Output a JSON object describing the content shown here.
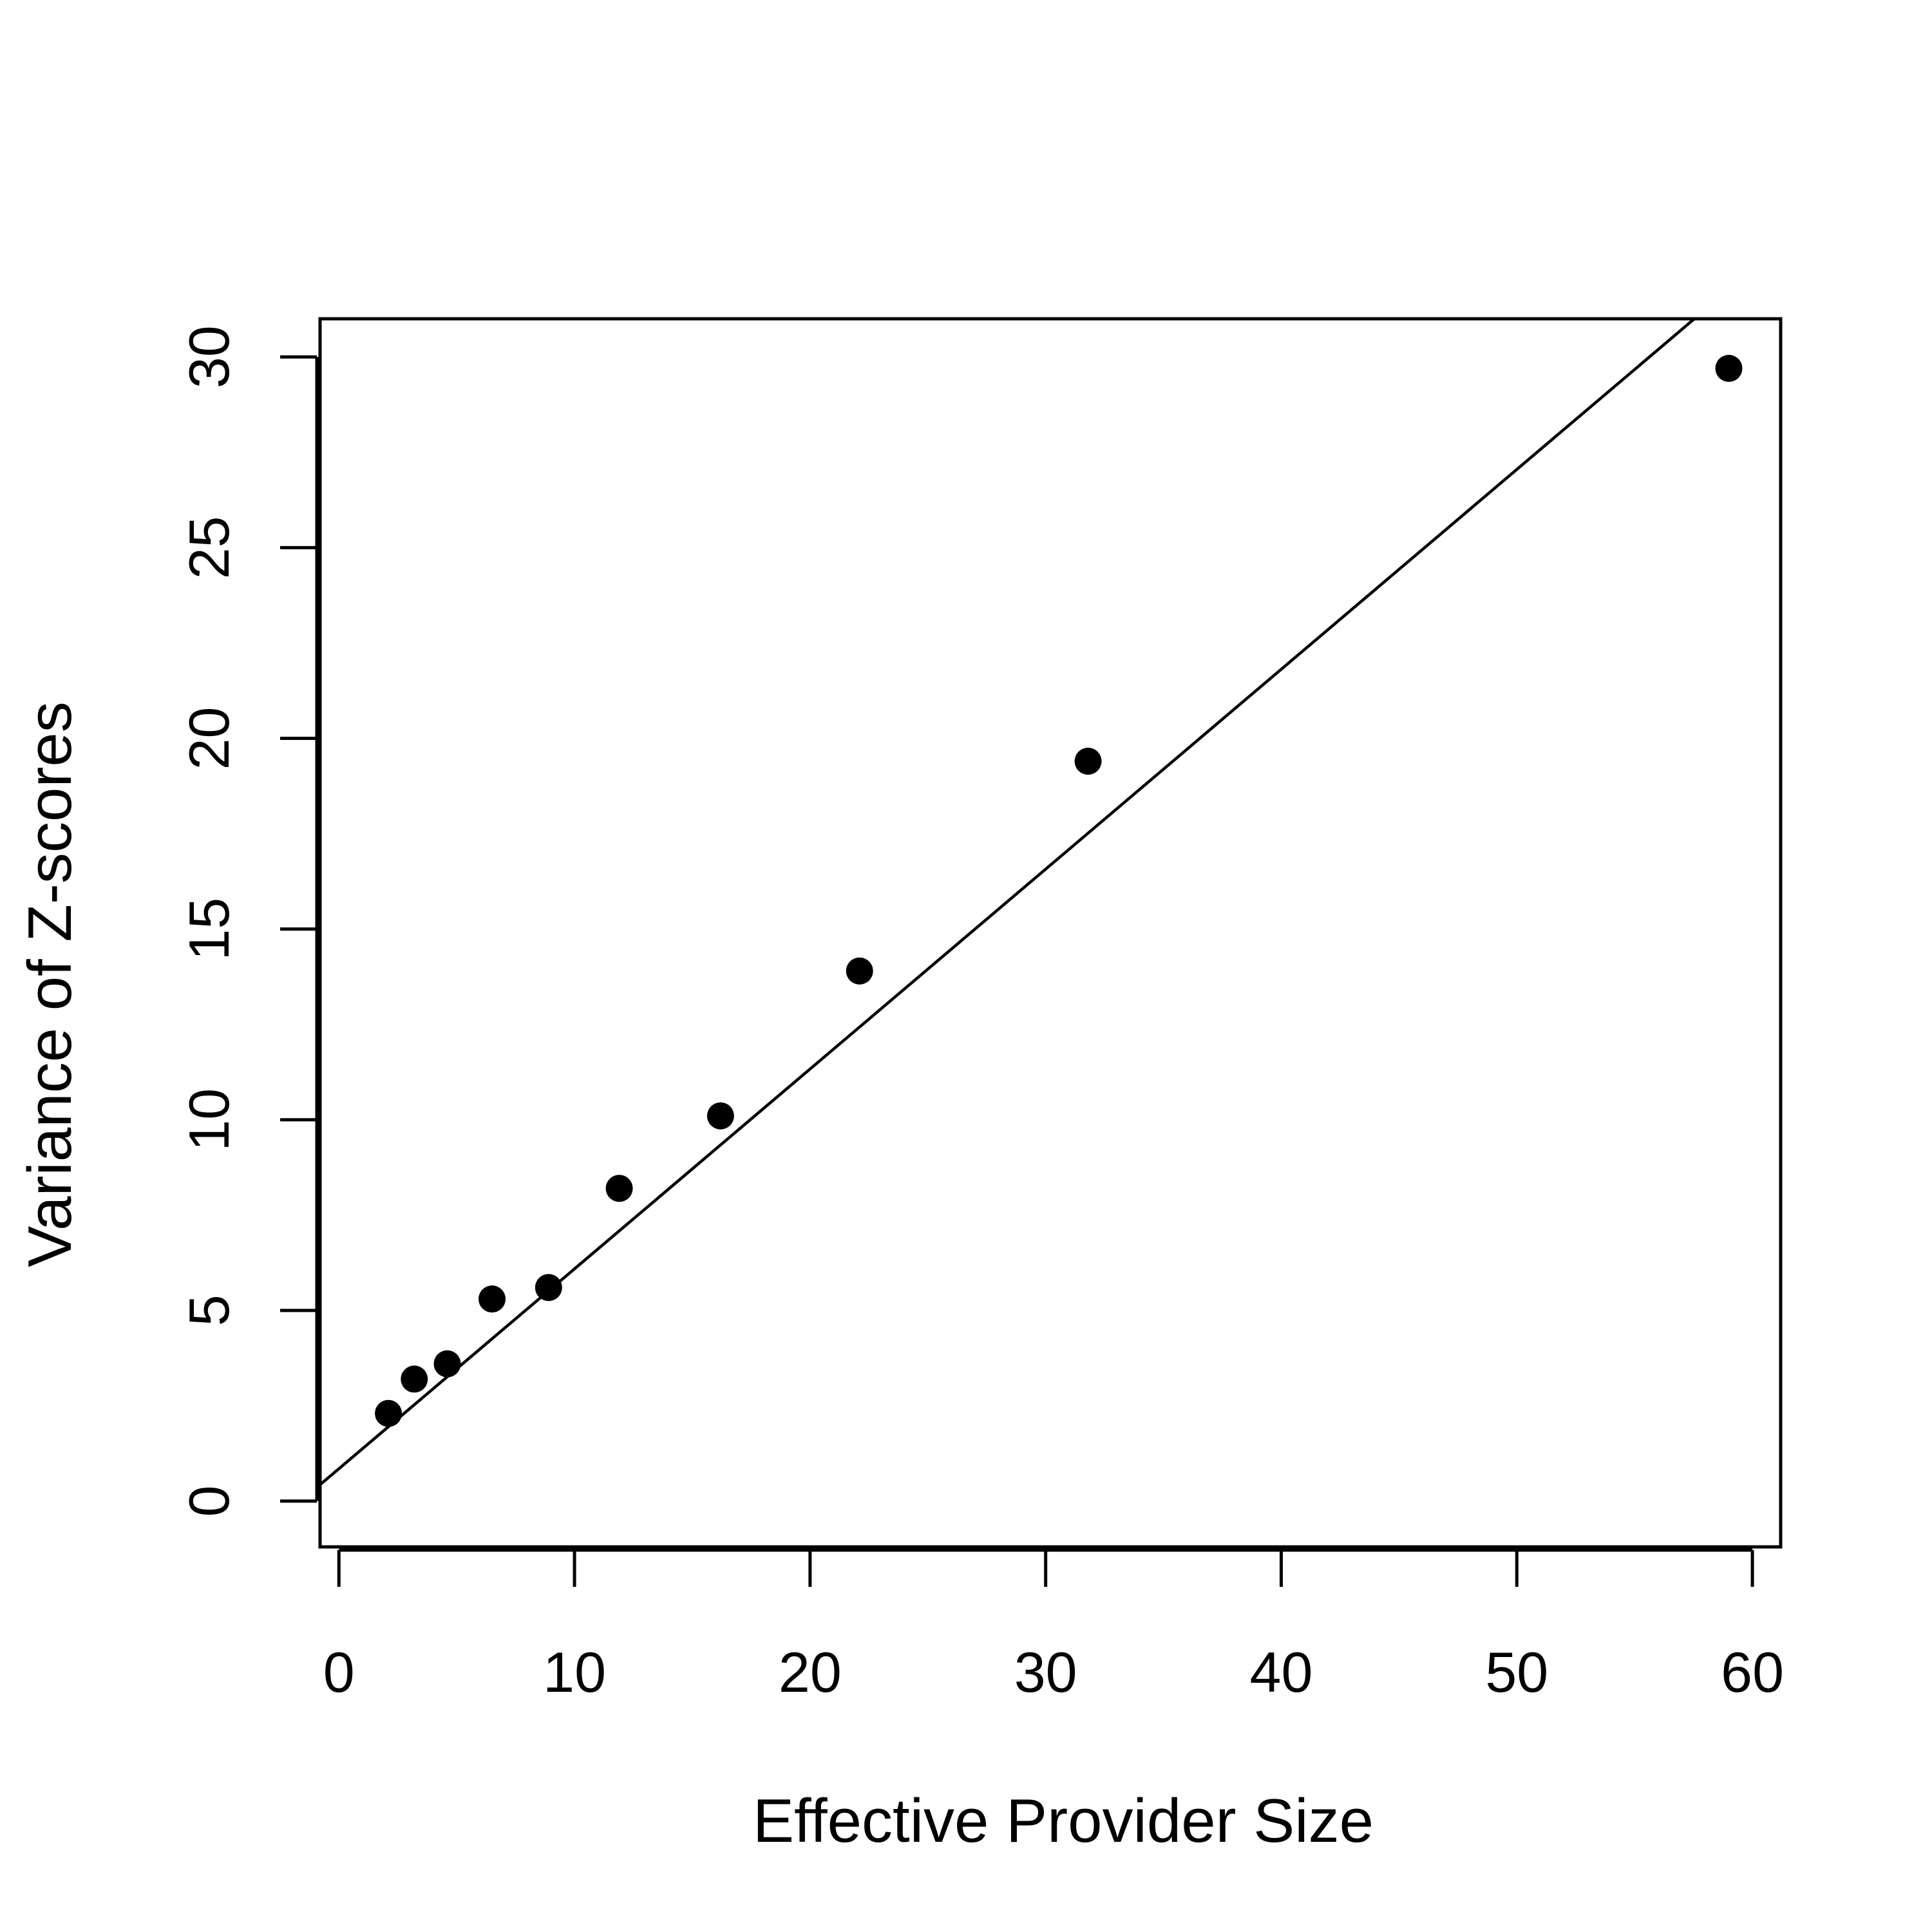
{
  "chart_data": {
    "type": "scatter",
    "title": "",
    "xlabel": "Effective Provider Size",
    "ylabel": "Variance of Z-scores",
    "xlim": [
      -0.8,
      61.2
    ],
    "ylim": [
      -1.2,
      31
    ],
    "x_ticks": [
      0,
      10,
      20,
      30,
      40,
      50,
      60
    ],
    "y_ticks": [
      0,
      5,
      10,
      15,
      20,
      25,
      30
    ],
    "grid": false,
    "legend": "none",
    "colors": {
      "points": "#000000",
      "line": "#000000",
      "axes": "#000000",
      "background": "#ffffff"
    },
    "series": [
      {
        "type": "scatter",
        "x": [
          2.1,
          3.2,
          4.6,
          6.5,
          8.9,
          11.9,
          16.2,
          22.1,
          31.8,
          59.0
        ],
        "y": [
          2.3,
          3.2,
          3.6,
          5.3,
          5.6,
          8.2,
          10.1,
          13.9,
          19.4,
          29.7
        ]
      }
    ],
    "fit_line": {
      "intercept": 0.85,
      "slope": 0.524
    }
  }
}
